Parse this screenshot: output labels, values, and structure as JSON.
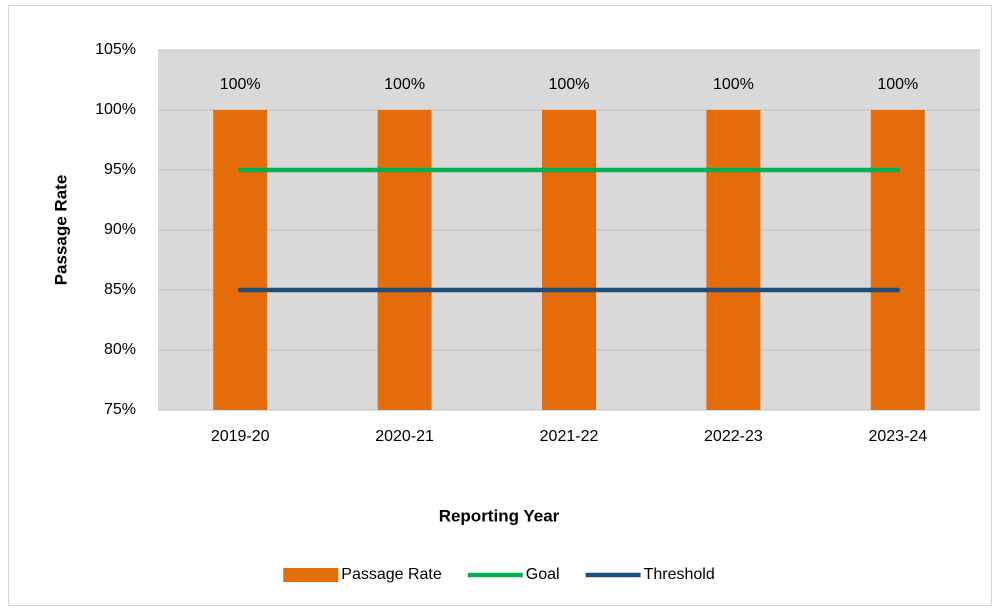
{
  "chart_data": {
    "type": "combo",
    "x_label": "Reporting Year",
    "y_label": "Passage Rate",
    "categories": [
      "2019-20",
      "2020-21",
      "2021-22",
      "2022-23",
      "2023-24"
    ],
    "series": [
      {
        "name": "Passage Rate",
        "type": "bar",
        "color": "#e46c0a",
        "values": [
          100,
          100,
          100,
          100,
          100
        ],
        "value_labels": [
          "100%",
          "100%",
          "100%",
          "100%",
          "100%"
        ]
      },
      {
        "name": "Goal",
        "type": "line",
        "color": "#00b050",
        "values": [
          95,
          95,
          95,
          95,
          95
        ]
      },
      {
        "name": "Threshold",
        "type": "line",
        "color": "#1f4e79",
        "values": [
          85,
          85,
          85,
          85,
          85
        ]
      }
    ],
    "ylim": [
      75,
      105
    ],
    "yticks": [
      {
        "value": 75,
        "label": "75%"
      },
      {
        "value": 80,
        "label": "80%"
      },
      {
        "value": 85,
        "label": "85%"
      },
      {
        "value": 90,
        "label": "90%"
      },
      {
        "value": 95,
        "label": "95%"
      },
      {
        "value": 100,
        "label": "100%"
      },
      {
        "value": 105,
        "label": "105%"
      }
    ],
    "grid": true,
    "legend": "bottom",
    "plot_background": "#d9d9d9"
  }
}
